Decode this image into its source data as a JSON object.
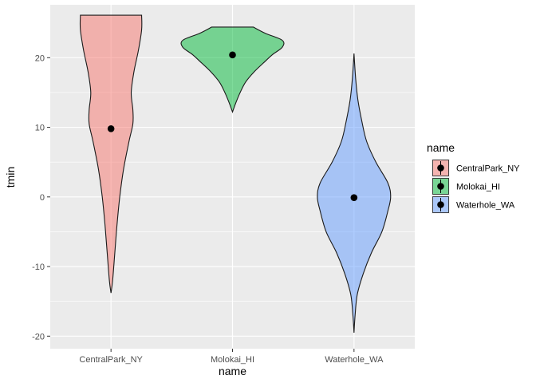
{
  "chart_data": {
    "type": "violin",
    "xlabel": "name",
    "ylabel": "tmin",
    "categories": [
      "CentralPark_NY",
      "Molokai_HI",
      "Waterhole_WA"
    ],
    "ylim": [
      -21.8,
      27.6
    ],
    "yticks": [
      -20,
      -10,
      0,
      10,
      20
    ],
    "grid": true,
    "legend": {
      "title": "name",
      "position": "right",
      "entries": [
        "CentralPark_NY",
        "Molokai_HI",
        "Waterhole_WA"
      ]
    },
    "series": [
      {
        "name": "CentralPark_NY",
        "color": "#F8766D",
        "median": 9.8,
        "profile": [
          [
            -13.8,
            0.0
          ],
          [
            -12.0,
            0.03
          ],
          [
            -8.0,
            0.07
          ],
          [
            -4.0,
            0.11
          ],
          [
            0.0,
            0.16
          ],
          [
            4.0,
            0.23
          ],
          [
            8.0,
            0.33
          ],
          [
            10.5,
            0.4
          ],
          [
            12.5,
            0.4
          ],
          [
            15.0,
            0.37
          ],
          [
            18.0,
            0.42
          ],
          [
            21.0,
            0.5
          ],
          [
            24.0,
            0.56
          ],
          [
            26.1,
            0.56
          ]
        ]
      },
      {
        "name": "Molokai_HI",
        "color": "#00BA38",
        "median": 20.4,
        "profile": [
          [
            12.2,
            0.0
          ],
          [
            13.5,
            0.06
          ],
          [
            15.0,
            0.14
          ],
          [
            16.5,
            0.24
          ],
          [
            18.0,
            0.4
          ],
          [
            19.5,
            0.6
          ],
          [
            20.5,
            0.74
          ],
          [
            21.5,
            0.91
          ],
          [
            22.5,
            0.91
          ],
          [
            23.5,
            0.6
          ],
          [
            24.4,
            0.38
          ]
        ]
      },
      {
        "name": "Waterhole_WA",
        "color": "#619CFF",
        "median": -0.1,
        "profile": [
          [
            -19.5,
            0.0
          ],
          [
            -17.0,
            0.02
          ],
          [
            -14.0,
            0.06
          ],
          [
            -11.0,
            0.17
          ],
          [
            -8.0,
            0.32
          ],
          [
            -5.0,
            0.51
          ],
          [
            -2.0,
            0.62
          ],
          [
            0.0,
            0.67
          ],
          [
            2.0,
            0.62
          ],
          [
            5.0,
            0.4
          ],
          [
            8.0,
            0.23
          ],
          [
            11.0,
            0.14
          ],
          [
            14.0,
            0.07
          ],
          [
            17.0,
            0.03
          ],
          [
            20.6,
            0.0
          ]
        ]
      }
    ]
  }
}
